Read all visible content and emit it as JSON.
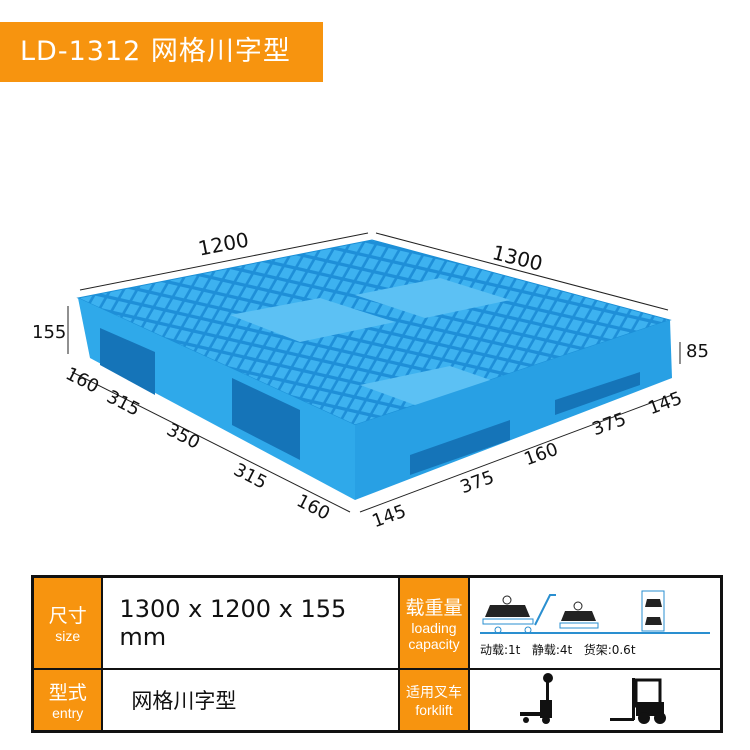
{
  "title": "LD-1312  网格川字型",
  "colors": {
    "accent": "#f7940f",
    "pallet": "#2fa9ea",
    "pallet_dark": "#1b8fd6"
  },
  "dimensions": {
    "length": "1200",
    "width": "1300",
    "height": "155",
    "entry_height": "85",
    "left_side": [
      "160",
      "315",
      "350",
      "315",
      "160"
    ],
    "right_side": [
      "145",
      "375",
      "160",
      "375",
      "145"
    ]
  },
  "specs": {
    "size_label_cn": "尺寸",
    "size_label_en": "size",
    "size_value": "1300 x 1200 x 155 mm",
    "load_label_cn": "载重量",
    "load_label_en_1": "loading",
    "load_label_en_2": "capacity",
    "dynamic": "动载:1t",
    "static": "静载:4t",
    "racking": "货架:0.6t",
    "type_label_cn": "型式",
    "type_label_en": "entry",
    "type_value": "网格川字型",
    "forklift_label_cn": "适用叉车",
    "forklift_label_en": "forklift",
    "icons": [
      "dynamic-load-icon",
      "static-load-icon",
      "racking-load-icon",
      "hand-pallet-truck-icon",
      "forklift-icon"
    ]
  }
}
